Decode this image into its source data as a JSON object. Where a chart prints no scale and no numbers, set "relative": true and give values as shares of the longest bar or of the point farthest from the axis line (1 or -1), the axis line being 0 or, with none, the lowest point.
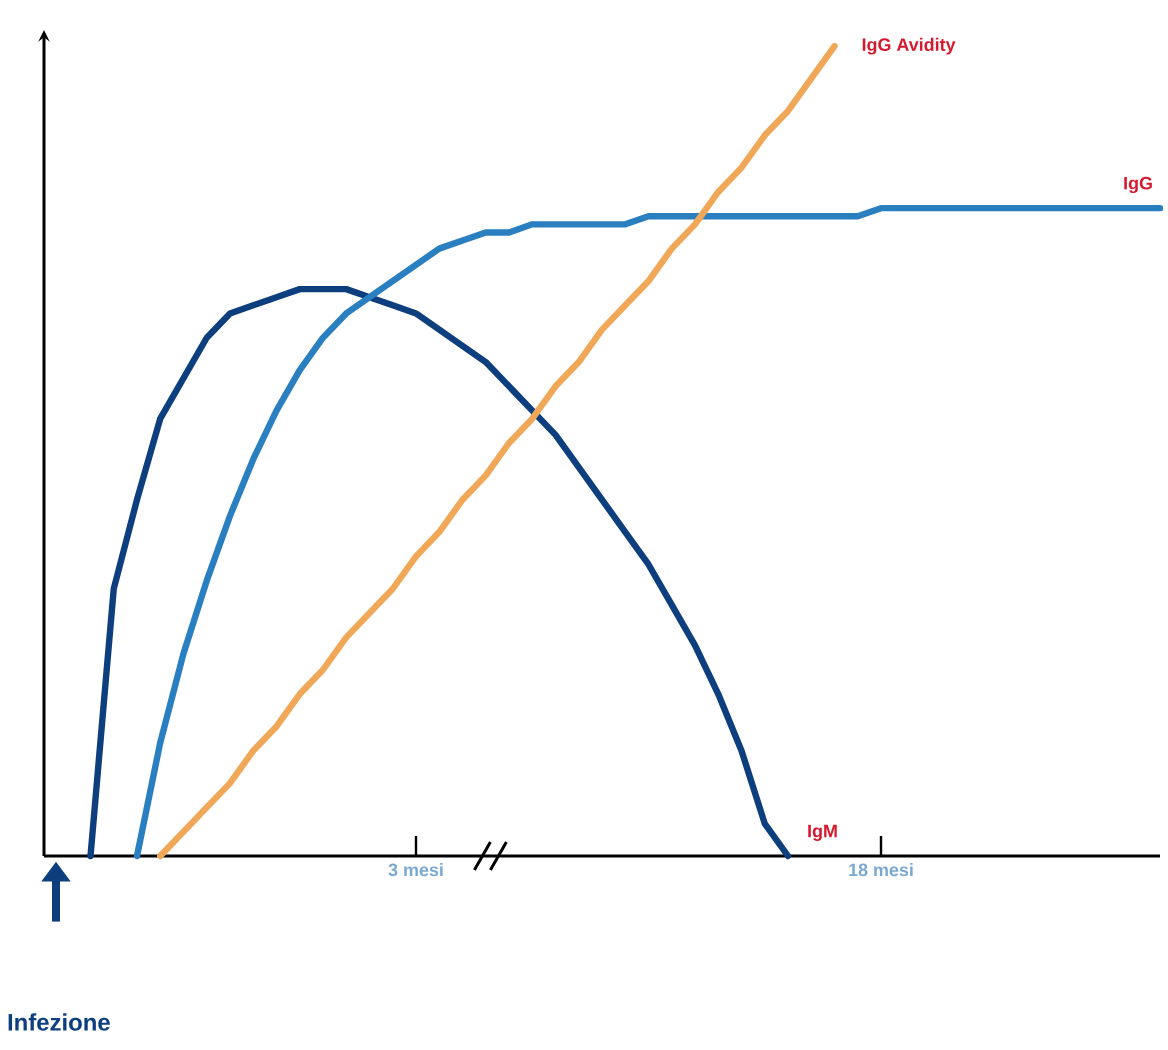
{
  "chart_data": {
    "type": "line",
    "relative": true,
    "categories": [
      null,
      null,
      null,
      null,
      null,
      null,
      null,
      null,
      null,
      null,
      null,
      null,
      null,
      null,
      null,
      null,
      "3 mesi",
      null,
      null,
      null,
      null,
      null,
      null,
      null,
      null,
      null,
      null,
      null,
      null,
      null,
      null,
      null,
      null,
      null,
      null,
      null,
      "18 mesi",
      null,
      null,
      null,
      null,
      null,
      null,
      null,
      null,
      null,
      null,
      null,
      null
    ],
    "series": [
      {
        "name": "IgM",
        "color": "#0d3f7f",
        "values": [
          null,
          null,
          0,
          0.33,
          0.44,
          0.54,
          0.59,
          0.64,
          0.67,
          0.68,
          0.69,
          0.7,
          0.7,
          0.7,
          0.69,
          0.68,
          0.67,
          0.65,
          0.63,
          0.61,
          0.58,
          0.55,
          0.52,
          0.48,
          0.44,
          0.4,
          0.36,
          0.31,
          0.26,
          0.2,
          0.13,
          0.04,
          0,
          null,
          null,
          null,
          null,
          null,
          null,
          null,
          null,
          null,
          null,
          null,
          null,
          null,
          null,
          null,
          null
        ]
      },
      {
        "name": "IgG",
        "color": "#2a7fc0",
        "values": [
          null,
          null,
          null,
          null,
          0,
          0.14,
          0.25,
          0.34,
          0.42,
          0.49,
          0.55,
          0.6,
          0.64,
          0.67,
          0.69,
          0.71,
          0.73,
          0.75,
          0.76,
          0.77,
          0.77,
          0.78,
          0.78,
          0.78,
          0.78,
          0.78,
          0.79,
          0.79,
          0.79,
          0.79,
          0.79,
          0.79,
          0.79,
          0.79,
          0.79,
          0.79,
          0.8,
          0.8,
          0.8,
          0.8,
          0.8,
          0.8,
          0.8,
          0.8,
          0.8,
          0.8,
          0.8,
          0.8,
          0.8
        ]
      },
      {
        "name": "IgG Avidity",
        "color": "#f0a858",
        "values": [
          null,
          null,
          null,
          null,
          null,
          0,
          0.03,
          0.06,
          0.09,
          0.13,
          0.16,
          0.2,
          0.23,
          0.27,
          0.3,
          0.33,
          0.37,
          0.4,
          0.44,
          0.47,
          0.51,
          0.54,
          0.58,
          0.61,
          0.65,
          0.68,
          0.71,
          0.75,
          0.78,
          0.82,
          0.85,
          0.89,
          0.92,
          0.96,
          1,
          null,
          null,
          null,
          null,
          null,
          null,
          null,
          null,
          null,
          null,
          null,
          null,
          null,
          null
        ]
      }
    ],
    "annotations": [
      "Infezione"
    ]
  }
}
